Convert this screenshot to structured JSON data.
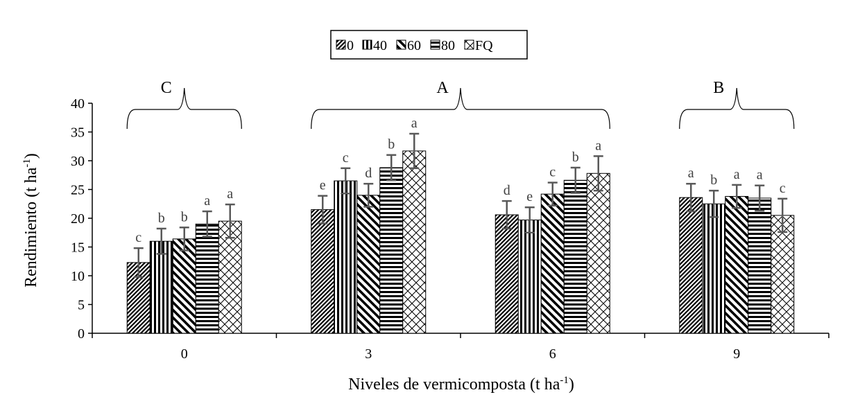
{
  "chart_data": {
    "type": "bar",
    "xlabel": "Niveles de vermicomposta (t ha",
    "xlabel_sup": "-1",
    "xlabel_end": ")",
    "ylabel": "Rendimiento (t ha",
    "ylabel_sup": "-1",
    "ylabel_end": ")",
    "categories": [
      "0",
      "3",
      "6",
      "9"
    ],
    "ylim": [
      0,
      40
    ],
    "yticks": [
      "0",
      "5",
      "10",
      "15",
      "20",
      "25",
      "30",
      "35",
      "40"
    ],
    "grid": false,
    "legend_position": "top-center",
    "series": [
      {
        "name": "0",
        "pattern": "diag-down",
        "values": [
          12.3,
          21.5,
          20.6,
          23.6
        ],
        "errors": [
          2.5,
          2.4,
          2.4,
          2.4
        ],
        "letters": [
          "c",
          "e",
          "d",
          "a"
        ]
      },
      {
        "name": "40",
        "pattern": "vertical",
        "values": [
          16.0,
          26.5,
          19.7,
          22.5
        ],
        "errors": [
          2.2,
          2.2,
          2.2,
          2.3
        ],
        "letters": [
          "b",
          "c",
          "e",
          "b"
        ]
      },
      {
        "name": "60",
        "pattern": "diag-wide",
        "values": [
          16.4,
          24.0,
          24.2,
          23.8
        ],
        "errors": [
          2.0,
          2.0,
          2.0,
          2.0
        ],
        "letters": [
          "b",
          "d",
          "c",
          "a"
        ]
      },
      {
        "name": "80",
        "pattern": "horizontal",
        "values": [
          19.0,
          28.8,
          26.6,
          23.5
        ],
        "errors": [
          2.2,
          2.2,
          2.2,
          2.2
        ],
        "letters": [
          "a",
          "b",
          "b",
          "a"
        ]
      },
      {
        "name": "FQ",
        "pattern": "crosshatch",
        "values": [
          19.5,
          31.7,
          27.8,
          20.5
        ],
        "errors": [
          2.9,
          3.0,
          3.0,
          2.9
        ],
        "letters": [
          "a",
          "a",
          "a",
          "c"
        ]
      }
    ],
    "group_letters": [
      {
        "letter": "C",
        "categories": [
          "0"
        ]
      },
      {
        "letter": "A",
        "categories": [
          "3",
          "6"
        ]
      },
      {
        "letter": "B",
        "categories": [
          "9"
        ]
      }
    ]
  }
}
